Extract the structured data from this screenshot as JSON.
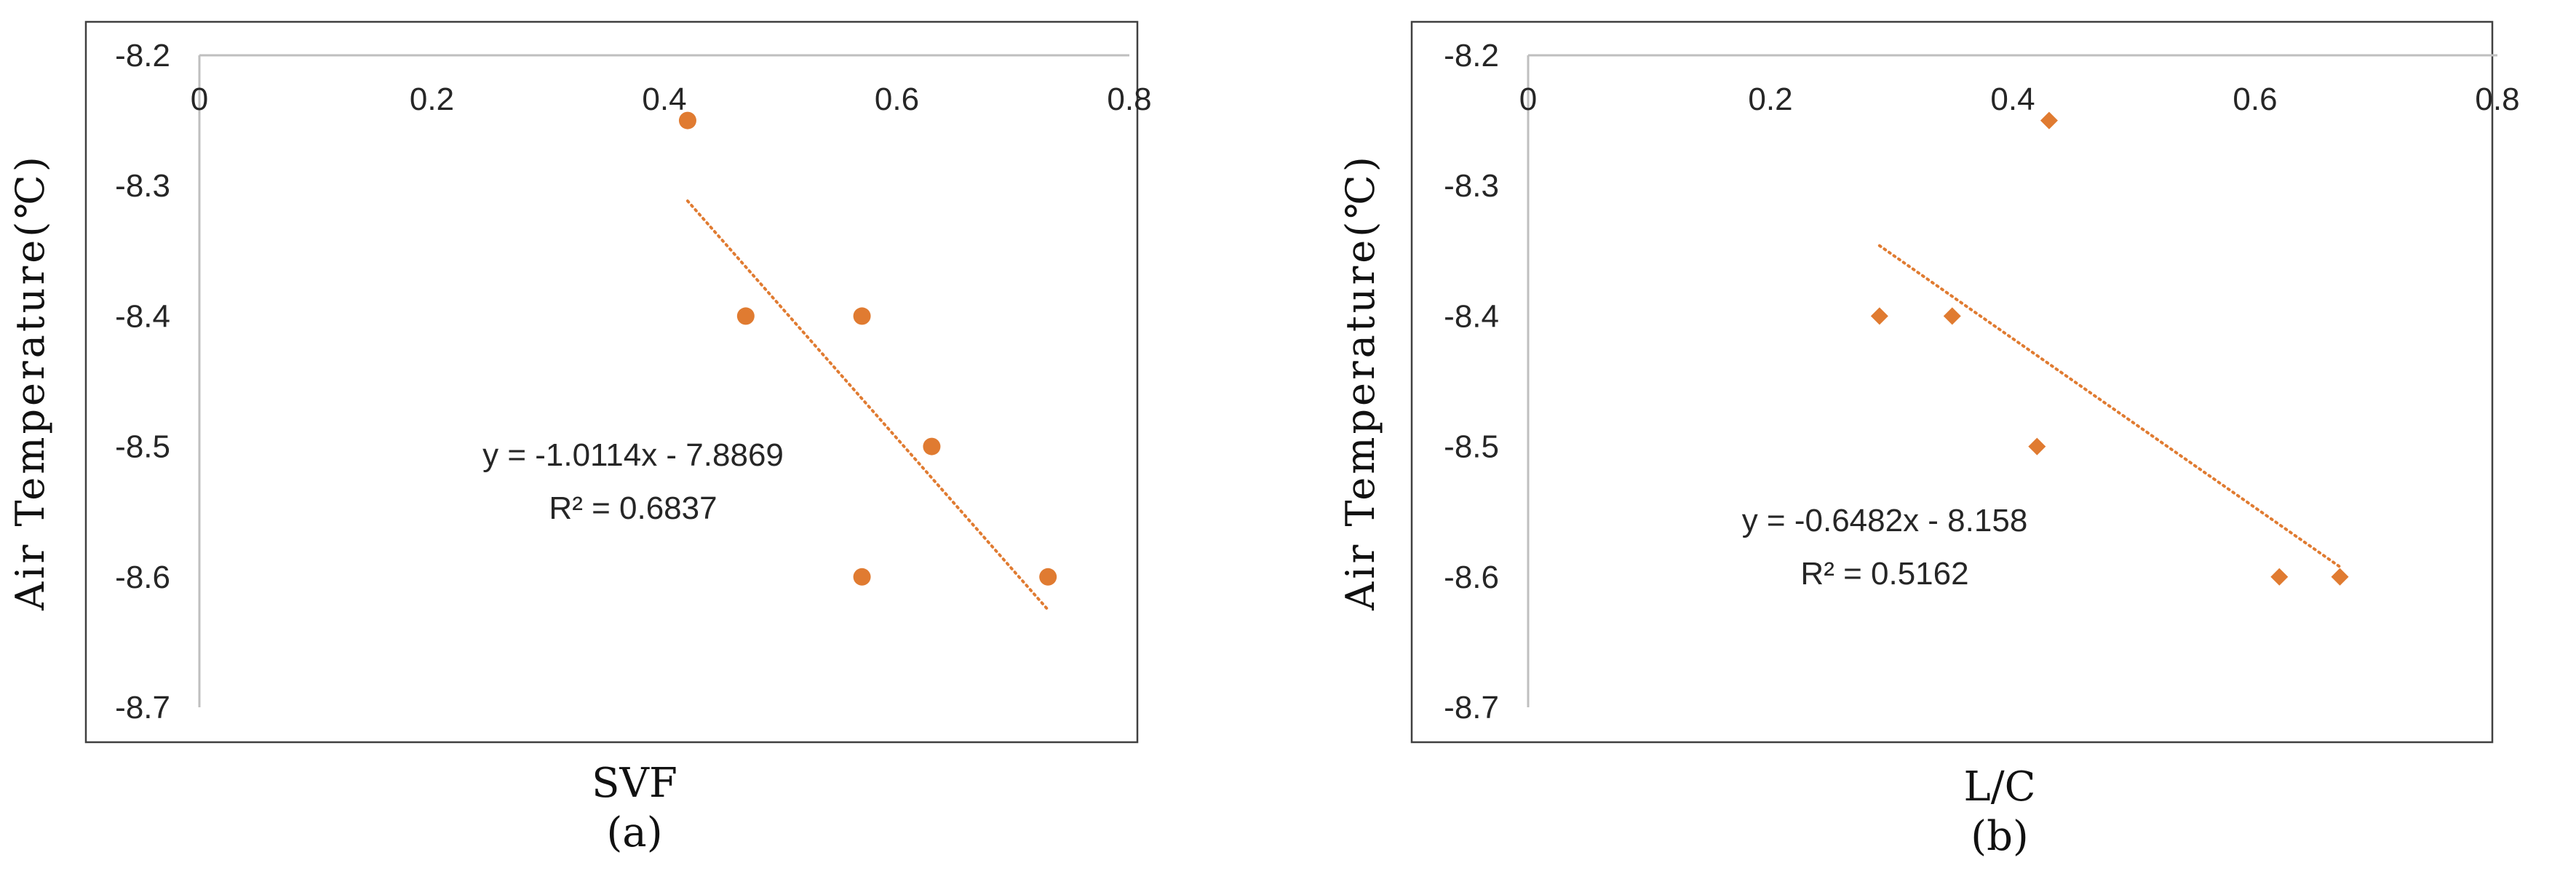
{
  "colors": {
    "marker": "#E07B31",
    "axis": "#BFBFBF",
    "frame": "#404040"
  },
  "chart_data": [
    {
      "type": "scatter",
      "marker": "circle",
      "caption": "(a)",
      "xlabel": "SVF",
      "ylabel": "Air Temperature(℃)",
      "xlim": [
        0,
        0.8
      ],
      "ylim": [
        -8.7,
        -8.2
      ],
      "x_ticks": [
        "0",
        "0.2",
        "0.4",
        "0.6",
        "0.8"
      ],
      "y_ticks": [
        "-8.2",
        "-8.3",
        "-8.4",
        "-8.5",
        "-8.6",
        "-8.7"
      ],
      "grid": false,
      "x_axis_position": "top",
      "points": [
        {
          "x": 0.42,
          "y": -8.25
        },
        {
          "x": 0.47,
          "y": -8.4
        },
        {
          "x": 0.57,
          "y": -8.4
        },
        {
          "x": 0.63,
          "y": -8.5
        },
        {
          "x": 0.57,
          "y": -8.6
        },
        {
          "x": 0.73,
          "y": -8.6
        }
      ],
      "trendline": {
        "slope": -1.0114,
        "intercept": -7.8869,
        "x_range": [
          0.42,
          0.73
        ],
        "style": "dotted"
      },
      "equation": "y = -1.0114x - 7.8869",
      "r2": "R² = 0.6837"
    },
    {
      "type": "scatter",
      "marker": "diamond",
      "caption": "(b)",
      "xlabel": "L/C",
      "ylabel": "Air Temperature(℃)",
      "xlim": [
        0,
        0.8
      ],
      "ylim": [
        -8.7,
        -8.2
      ],
      "x_ticks": [
        "0",
        "0.2",
        "0.4",
        "0.6",
        "0.8"
      ],
      "y_ticks": [
        "-8.2",
        "-8.3",
        "-8.4",
        "-8.5",
        "-8.6",
        "-8.7"
      ],
      "grid": false,
      "x_axis_position": "top",
      "points": [
        {
          "x": 0.43,
          "y": -8.25
        },
        {
          "x": 0.29,
          "y": -8.4
        },
        {
          "x": 0.35,
          "y": -8.4
        },
        {
          "x": 0.42,
          "y": -8.5
        },
        {
          "x": 0.62,
          "y": -8.6
        },
        {
          "x": 0.67,
          "y": -8.6
        }
      ],
      "trendline": {
        "slope": -0.6482,
        "intercept": -8.158,
        "x_range": [
          0.29,
          0.67
        ],
        "style": "dotted"
      },
      "equation": "y = -0.6482x - 8.158",
      "r2": "R² = 0.5162"
    }
  ]
}
